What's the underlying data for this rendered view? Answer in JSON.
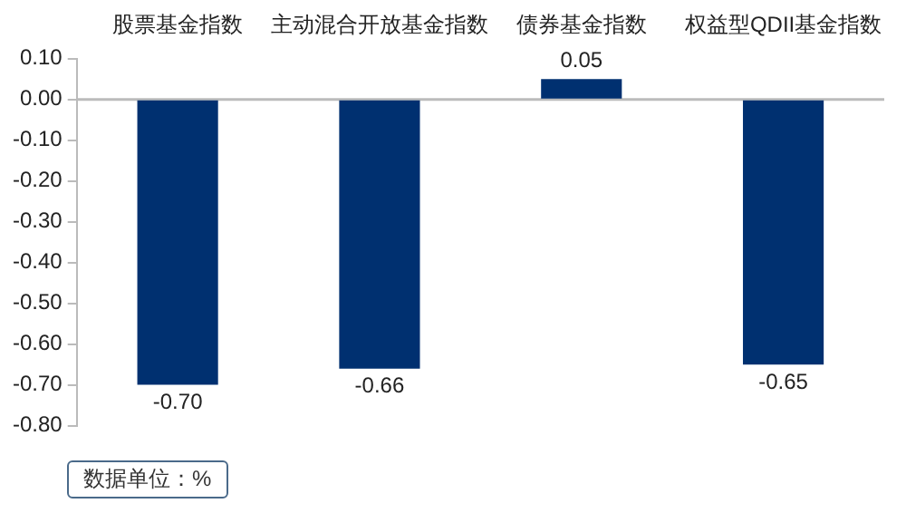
{
  "chart_data": {
    "type": "bar",
    "categories": [
      "股票基金指数",
      "主动混合开放基金指数",
      "债券基金指数",
      "权益型QDII基金指数"
    ],
    "values": [
      -0.7,
      -0.66,
      0.05,
      -0.65
    ],
    "value_labels": [
      "-0.70",
      "-0.66",
      "0.05",
      "-0.65"
    ],
    "color": "#003070",
    "ylim": [
      -0.8,
      0.1
    ],
    "yticks": [
      {
        "value": 0.1,
        "label": "0.10"
      },
      {
        "value": 0,
        "label": "0.00"
      },
      {
        "value": -0.1,
        "label": "-0.10"
      },
      {
        "value": -0.2,
        "label": "-0.20"
      },
      {
        "value": -0.3,
        "label": "-0.30"
      },
      {
        "value": -0.4,
        "label": "-0.40"
      },
      {
        "value": -0.5,
        "label": "-0.50"
      },
      {
        "value": -0.6,
        "label": "-0.60"
      },
      {
        "value": -0.7,
        "label": "-0.70"
      },
      {
        "value": -0.8,
        "label": "-0.80"
      }
    ],
    "annotations": [
      "数据单位：%"
    ],
    "ref_lines": [
      {
        "axis": "y",
        "value": 0,
        "color": "#bbbbbb"
      }
    ],
    "grid": false,
    "legend": false
  }
}
